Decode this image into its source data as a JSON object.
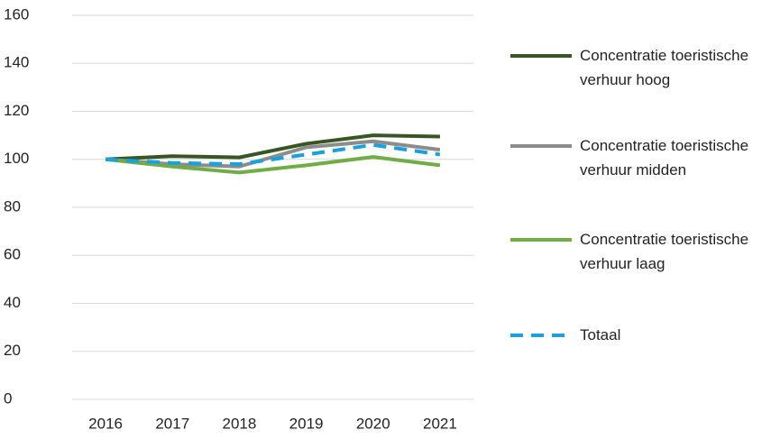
{
  "chart_data": {
    "type": "line",
    "categories": [
      "2016",
      "2017",
      "2018",
      "2019",
      "2020",
      "2021"
    ],
    "series": [
      {
        "name": "Concentratie toeristische verhuur hoog",
        "color": "#375623",
        "dash": false,
        "values": [
          100,
          101.3,
          100.8,
          106.5,
          110,
          109.5
        ]
      },
      {
        "name": "Concentratie toeristische verhuur midden",
        "color": "#8c8c8c",
        "dash": false,
        "values": [
          100,
          98,
          97,
          105,
          107.5,
          104
        ]
      },
      {
        "name": "Concentratie toeristische verhuur laag",
        "color": "#70ad47",
        "dash": false,
        "values": [
          100,
          97,
          94.5,
          97.5,
          101,
          97.5
        ]
      },
      {
        "name": "Totaal",
        "color": "#1aa0dc",
        "dash": true,
        "values": [
          100,
          98.5,
          98,
          102,
          106,
          102
        ]
      }
    ],
    "ylim": [
      0,
      160
    ],
    "yticks": [
      0,
      20,
      40,
      60,
      80,
      100,
      120,
      140,
      160
    ],
    "grid": true,
    "legend": "right"
  }
}
